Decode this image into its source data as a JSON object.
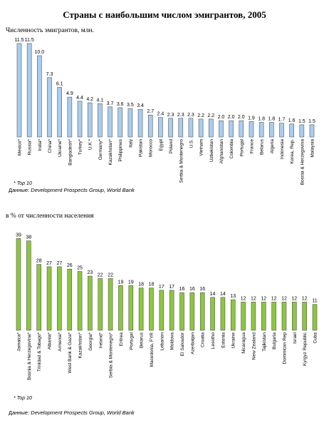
{
  "title": "Страны с наибольшим числом эмигрантов, 2005",
  "colors": {
    "chart1_bar": "#a9cdf0",
    "chart2_bar": "#8dc63f",
    "bar_edge": "#555555"
  },
  "chart_data": [
    {
      "type": "bar",
      "ylabel": "Численность эмигрантов, млн.",
      "categories": [
        "Mexico*",
        "Russia*",
        "India*",
        "China*",
        "Ukraine*",
        "Bangladesh*",
        "Turkey*",
        "U.K.*",
        "Germany*",
        "Kazakhstan*",
        "Philippines",
        "Italy",
        "Pakistan",
        "Morocco",
        "Egypt",
        "Poland",
        "Serbia & Montenegro",
        "U.S.",
        "Vietnam",
        "Uzbekistan",
        "Afghanistan",
        "Colombia",
        "Portugal",
        "France",
        "Belarus",
        "Algeria",
        "Indonesia",
        "Korea, Rep.",
        "Bosnia & Herzegovina",
        "Malaysia"
      ],
      "values": [
        11.5,
        11.5,
        10.0,
        7.3,
        6.1,
        4.9,
        4.4,
        4.2,
        4.1,
        3.7,
        3.6,
        3.5,
        3.4,
        2.7,
        2.4,
        2.3,
        2.3,
        2.3,
        2.2,
        2.2,
        2.0,
        2.0,
        2.0,
        1.9,
        1.8,
        1.8,
        1.7,
        1.6,
        1.5,
        1.5
      ],
      "value_labels": [
        "11.5",
        "11.5",
        "10.0",
        "7.3",
        "6.1",
        "4.9",
        "4.4",
        "4.2",
        "4.1",
        "3.7",
        "3.6",
        "3.5",
        "3.4",
        "2.7",
        "2.4",
        "2.3",
        "2.3",
        "2.3",
        "2.2",
        "2.2",
        "2.0",
        "2.0",
        "2.0",
        "1.9",
        "1.8",
        "1.8",
        "1.7",
        "1.6",
        "1.5",
        "1.5"
      ],
      "note": "* Top 10",
      "source_label": "Данные:",
      "source": "Development Prospects Group, World Bank"
    },
    {
      "type": "bar",
      "ylabel": "в % от численности населения",
      "categories": [
        "Jamaica*",
        "Bosnia & Herzegovina*",
        "Trinidad & Tobago*",
        "Albania*",
        "Armenia*",
        "West Bank & Gaza*",
        "Kazakhstan*",
        "Georgia*",
        "Ireland*",
        "Serbia & Montenegro*",
        "Eritrea",
        "Portugal",
        "Belarus",
        "Macedonia, FYR",
        "Lebanon",
        "Moldova",
        "El Salvador",
        "Azerbaijan",
        "Croatia",
        "Lesotho",
        "Estonia",
        "Ukraine",
        "Nicaragua",
        "New Zealand",
        "Tajikistan",
        "Bulgaria",
        "Dominican Rep",
        "Israel",
        "Kyrgyz Republic",
        "Cuba"
      ],
      "values": [
        39,
        38,
        28,
        27,
        27,
        26,
        25,
        23,
        22,
        22,
        19,
        19,
        18,
        18,
        17,
        17,
        16,
        16,
        16,
        14,
        14,
        13,
        12,
        12,
        12,
        12,
        12,
        12,
        12,
        11
      ],
      "value_labels": [
        "39",
        "38",
        "28",
        "27",
        "27",
        "26",
        "25",
        "23",
        "22",
        "22",
        "19",
        "19",
        "18",
        "18",
        "17",
        "17",
        "16",
        "16",
        "16",
        "14",
        "14",
        "13",
        "12",
        "12",
        "12",
        "12",
        "12",
        "12",
        "12",
        "11"
      ],
      "note": "* Top 10",
      "source_label": "Данные:",
      "source": "Development Prospects Group, World Bank"
    }
  ]
}
